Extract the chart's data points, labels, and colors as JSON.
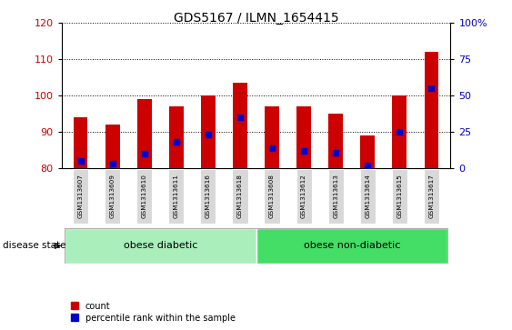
{
  "title": "GDS5167 / ILMN_1654415",
  "samples": [
    "GSM1313607",
    "GSM1313609",
    "GSM1313610",
    "GSM1313611",
    "GSM1313616",
    "GSM1313618",
    "GSM1313608",
    "GSM1313612",
    "GSM1313613",
    "GSM1313614",
    "GSM1313615",
    "GSM1313617"
  ],
  "counts": [
    94.0,
    92.0,
    99.0,
    97.0,
    100.0,
    103.5,
    97.0,
    97.0,
    95.0,
    89.0,
    100.0,
    112.0
  ],
  "percentiles": [
    5,
    3,
    10,
    18,
    23,
    35,
    14,
    12,
    11,
    2,
    25,
    55
  ],
  "bar_color": "#cc0000",
  "dot_color": "#0000cc",
  "ylim_left": [
    80,
    120
  ],
  "ylim_right": [
    0,
    100
  ],
  "yticks_left": [
    80,
    90,
    100,
    110,
    120
  ],
  "yticks_right": [
    0,
    25,
    50,
    75,
    100
  ],
  "ytick_labels_right": [
    "0",
    "25",
    "50",
    "75",
    "100%"
  ],
  "bar_baseline": 80,
  "groups": [
    {
      "label": "obese diabetic",
      "start": 0,
      "end": 6,
      "color": "#aaeebb"
    },
    {
      "label": "obese non-diabetic",
      "start": 6,
      "end": 12,
      "color": "#44dd66"
    }
  ],
  "disease_state_label": "disease state",
  "legend_count_label": "count",
  "legend_percentile_label": "percentile rank within the sample",
  "bar_width": 0.45,
  "tick_label_color_left": "#cc0000",
  "tick_label_color_right": "#0000cc",
  "background_color": "#ffffff",
  "plot_bg_color": "#ffffff",
  "xlabel_bg_color": "#cccccc"
}
